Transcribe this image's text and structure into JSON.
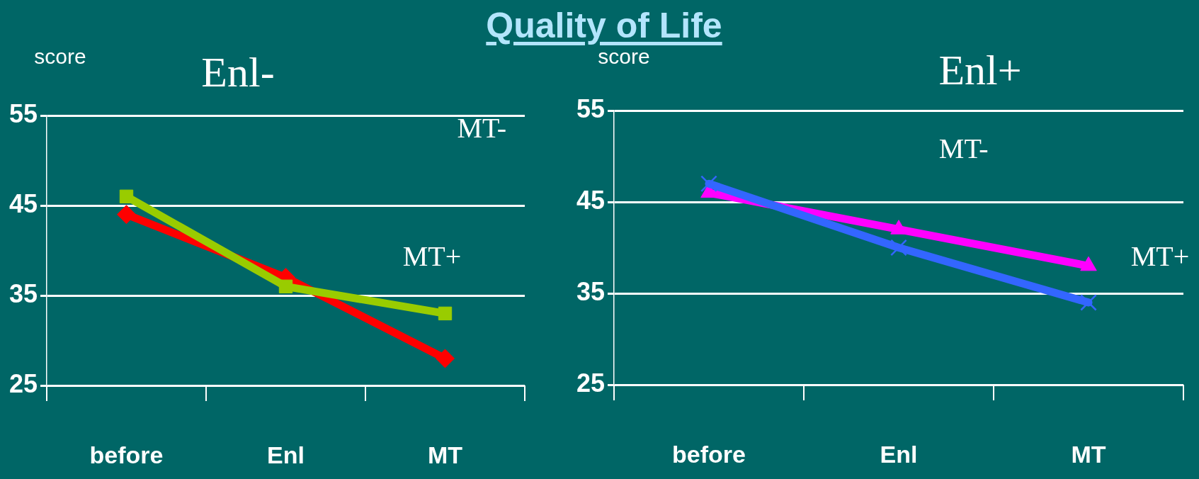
{
  "chart_data": [
    {
      "type": "line",
      "title": "Quality of Life",
      "subtitle": "Enl-",
      "ylabel": "score",
      "categories": [
        "before",
        "Enl",
        "MT"
      ],
      "series": [
        {
          "color": "#99cc00",
          "marker": "square",
          "values": [
            46,
            36,
            33
          ]
        },
        {
          "color": "#ff0000",
          "marker": "diamond",
          "values": [
            44,
            37,
            28
          ]
        }
      ],
      "ylim": [
        25,
        55
      ],
      "yticks": [
        25,
        35,
        45,
        55
      ],
      "grid": "y",
      "annotations": [
        "MT-",
        "MT+"
      ]
    },
    {
      "type": "line",
      "subtitle": "Enl+",
      "ylabel": "score",
      "categories": [
        "before",
        "Enl",
        "MT"
      ],
      "series": [
        {
          "color": "#3366ff",
          "marker": "cross",
          "values": [
            47,
            40,
            34
          ]
        },
        {
          "color": "#ff00ff",
          "marker": "triangle",
          "values": [
            46,
            42,
            38
          ]
        }
      ],
      "ylim": [
        25,
        55
      ],
      "yticks": [
        25,
        35,
        45,
        55
      ],
      "grid": "y",
      "annotations": [
        "MT-",
        "MT+"
      ]
    }
  ]
}
